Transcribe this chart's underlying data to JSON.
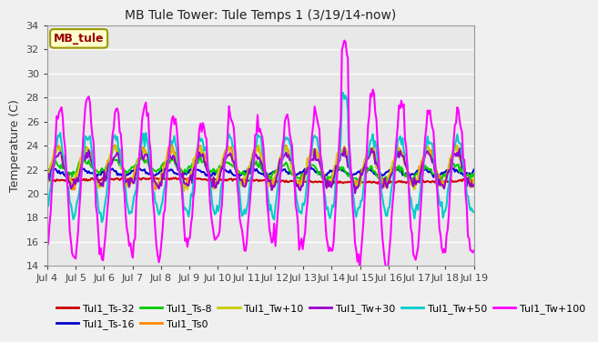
{
  "title": "MB Tule Tower: Tule Temps 1 (3/19/14-now)",
  "ylabel": "Temperature (C)",
  "ylim": [
    14,
    34
  ],
  "yticks": [
    14,
    16,
    18,
    20,
    22,
    24,
    26,
    28,
    30,
    32,
    34
  ],
  "x_labels": [
    "Jul 4",
    "Jul 5",
    "Jul 6",
    "Jul 7",
    "Jul 8",
    "Jul 9",
    "Jul 10",
    "Jul 11",
    "Jul 12",
    "Jul 13",
    "Jul 14",
    "Jul 15",
    "Jul 16",
    "Jul 17",
    "Jul 18",
    "Jul 19"
  ],
  "bg_color": "#e8e8e8",
  "grid_color": "#ffffff",
  "fig_bg_color": "#f0f0f0",
  "legend_label": "MB_tule",
  "series_order": [
    "Tul1_Ts-32",
    "Tul1_Ts-16",
    "Tul1_Ts-8",
    "Tul1_Ts0",
    "Tul1_Tw+10",
    "Tul1_Tw+30",
    "Tul1_Tw+50",
    "Tul1_Tw+100"
  ],
  "series": {
    "Tul1_Ts-32": {
      "color": "#cc0000",
      "lw": 1.5
    },
    "Tul1_Ts-16": {
      "color": "#0000cc",
      "lw": 1.5
    },
    "Tul1_Ts-8": {
      "color": "#00cc00",
      "lw": 1.5
    },
    "Tul1_Ts0": {
      "color": "#ff8800",
      "lw": 1.5
    },
    "Tul1_Tw+10": {
      "color": "#cccc00",
      "lw": 1.5
    },
    "Tul1_Tw+30": {
      "color": "#9900cc",
      "lw": 1.5
    },
    "Tul1_Tw+50": {
      "color": "#00cccc",
      "lw": 1.5
    },
    "Tul1_Tw+100": {
      "color": "#ff00ff",
      "lw": 1.5
    }
  },
  "legend_ncol": 6,
  "title_fontsize": 10,
  "axis_fontsize": 9,
  "tick_fontsize": 8,
  "legend_fontsize": 8
}
